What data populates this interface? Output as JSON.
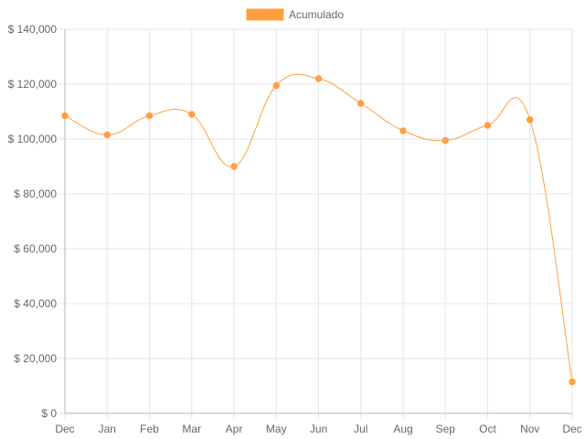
{
  "chart_data": {
    "type": "line",
    "title": "",
    "xlabel": "",
    "ylabel": "",
    "categories": [
      "Dec",
      "Jan",
      "Feb",
      "Mar",
      "Apr",
      "May",
      "Jun",
      "Jul",
      "Aug",
      "Sep",
      "Oct",
      "Nov",
      "Dec"
    ],
    "series": [
      {
        "name": "Acumulado",
        "values": [
          108500,
          101500,
          108500,
          109000,
          90000,
          119500,
          122000,
          113000,
          103000,
          99500,
          105000,
          107000,
          11500
        ]
      }
    ],
    "ylim": [
      0,
      140000
    ],
    "y_ticks": [
      "$ 0",
      "$ 20,000",
      "$ 40,000",
      "$ 60,000",
      "$ 80,000",
      "$ 100,000",
      "$ 120,000",
      "$ 140,000"
    ],
    "y_tick_values": [
      0,
      20000,
      40000,
      60000,
      80000,
      100000,
      120000,
      140000
    ],
    "grid": true,
    "legend_position": "top",
    "colors": {
      "series": "#ff9f40",
      "grid": "#e6e6e6",
      "axis": "#b4b4b4",
      "text": "#666666"
    }
  }
}
